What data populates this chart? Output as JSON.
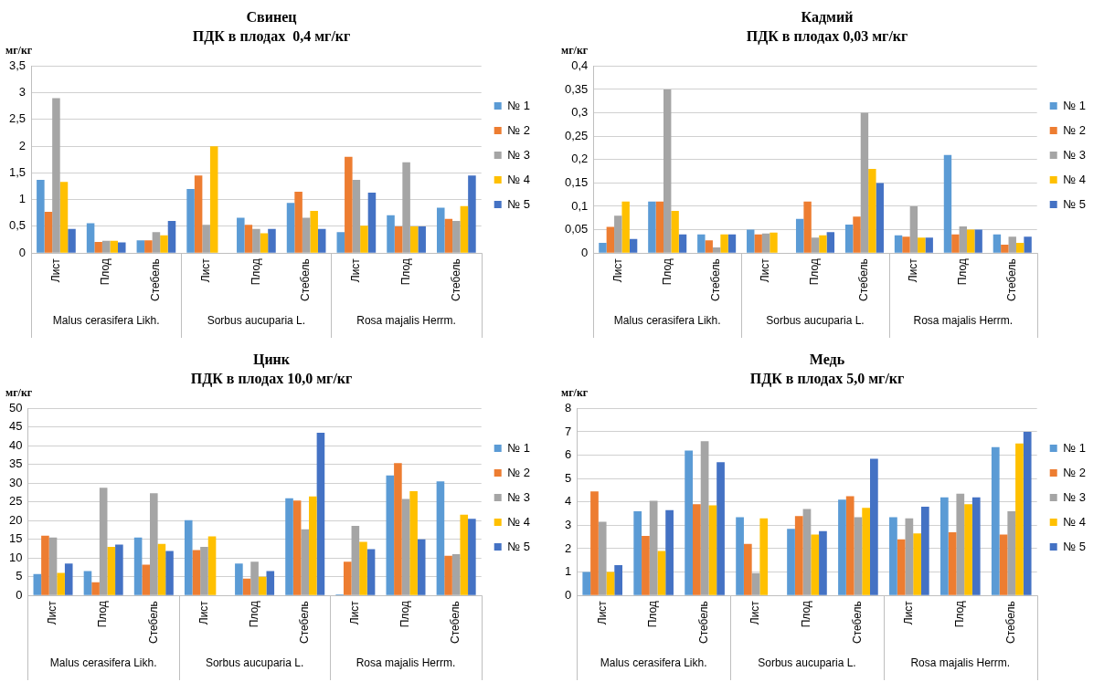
{
  "chart_data": [
    {
      "type": "bar",
      "title": "Свинец",
      "subtitle": "ПДК в плодах  0,4 мг/кг",
      "ylabel": "мг/кг",
      "categories": [
        "Лист",
        "Плод",
        "Стебель",
        "Лист",
        "Плод",
        "Стебель",
        "Лист",
        "Плод",
        "Стебель"
      ],
      "annotations": [
        "Malus cerasifera Likh.",
        "Sorbus aucuparia L.",
        "Rosa majalis Herrm."
      ],
      "ylim": [
        0,
        3.5
      ],
      "yticks": [
        0,
        {
          "value": 0.5,
          "label": "0,5"
        },
        1,
        {
          "value": 1.5,
          "label": "1,5"
        },
        2,
        {
          "value": 2.5,
          "label": "2,5"
        },
        3,
        {
          "value": 3.5,
          "label": "3,5"
        }
      ],
      "grid": "y",
      "legend": "right",
      "series": [
        {
          "name": "№ 1",
          "color": "#5b9bd5",
          "values": [
            1.37,
            0.56,
            0.24,
            1.2,
            0.66,
            0.94,
            0.39,
            0.71,
            0.85
          ]
        },
        {
          "name": "№ 2",
          "color": "#ed7d31",
          "values": [
            0.77,
            0.21,
            0.24,
            1.45,
            0.53,
            1.15,
            1.8,
            0.5,
            0.64
          ]
        },
        {
          "name": "№ 3",
          "color": "#a5a5a5",
          "values": [
            2.9,
            0.23,
            0.39,
            0.53,
            0.45,
            0.66,
            1.37,
            1.7,
            0.6
          ]
        },
        {
          "name": "№ 4",
          "color": "#ffc000",
          "values": [
            1.33,
            0.23,
            0.33,
            2.0,
            0.37,
            0.79,
            0.51,
            0.5,
            0.88
          ]
        },
        {
          "name": "№ 5",
          "color": "#4472c4",
          "values": [
            0.45,
            0.2,
            0.6,
            null,
            0.45,
            0.45,
            1.13,
            0.5,
            1.45
          ]
        }
      ]
    },
    {
      "type": "bar",
      "title": "Кадмий",
      "subtitle": "ПДК в плодах 0,03 мг/кг",
      "ylabel": "мг/кг",
      "categories": [
        "Лист",
        "Плод",
        "Стебель",
        "Лист",
        "Плод",
        "Стебель",
        "Лист",
        "Плод",
        "Стебель"
      ],
      "annotations": [
        "Malus cerasifera Likh.",
        "Sorbus aucuparia L.",
        "Rosa majalis Herrm."
      ],
      "ylim": [
        0,
        0.4
      ],
      "yticks": [
        0,
        {
          "value": 0.05,
          "label": "0,05"
        },
        {
          "value": 0.1,
          "label": "0,1"
        },
        {
          "value": 0.15,
          "label": "0,15"
        },
        {
          "value": 0.2,
          "label": "0,2"
        },
        {
          "value": 0.25,
          "label": "0,25"
        },
        {
          "value": 0.3,
          "label": "0,3"
        },
        {
          "value": 0.35,
          "label": "0,35"
        },
        {
          "value": 0.4,
          "label": "0,4"
        }
      ],
      "grid": "y",
      "legend": "right",
      "series": [
        {
          "name": "№ 1",
          "color": "#5b9bd5",
          "values": [
            0.022,
            0.11,
            0.04,
            0.05,
            0.073,
            0.061,
            0.038,
            0.21,
            0.04
          ]
        },
        {
          "name": "№ 2",
          "color": "#ed7d31",
          "values": [
            0.056,
            0.11,
            0.027,
            0.04,
            0.11,
            0.078,
            0.035,
            0.04,
            0.018
          ]
        },
        {
          "name": "№ 3",
          "color": "#a5a5a5",
          "values": [
            0.08,
            0.35,
            0.012,
            0.042,
            0.033,
            0.3,
            0.1,
            0.057,
            0.035
          ]
        },
        {
          "name": "№ 4",
          "color": "#ffc000",
          "values": [
            0.11,
            0.09,
            0.04,
            0.044,
            0.038,
            0.18,
            0.033,
            0.05,
            0.022
          ]
        },
        {
          "name": "№ 5",
          "color": "#4472c4",
          "values": [
            0.03,
            0.04,
            0.04,
            null,
            0.045,
            0.15,
            0.033,
            0.05,
            0.035
          ]
        }
      ]
    },
    {
      "type": "bar",
      "title": "Цинк",
      "subtitle": "ПДК в плодах 10,0 мг/кг",
      "ylabel": "мг/кг",
      "categories": [
        "Лист",
        "Плод",
        "Стебель",
        "Лист",
        "Плод",
        "Стебель",
        "Лист",
        "Плод",
        "Стебель"
      ],
      "annotations": [
        "Malus cerasifera Likh.",
        "Sorbus aucuparia L.",
        "Rosa majalis Herrm."
      ],
      "ylim": [
        0,
        50
      ],
      "yticks": [
        0,
        5,
        10,
        15,
        20,
        25,
        30,
        35,
        40,
        45,
        50
      ],
      "grid": "y",
      "legend": "right",
      "series": [
        {
          "name": "№ 1",
          "color": "#5b9bd5",
          "values": [
            5.7,
            6.5,
            15.5,
            20.1,
            8.5,
            26,
            0.3,
            32.1,
            30.5
          ]
        },
        {
          "name": "№ 2",
          "color": "#ed7d31",
          "values": [
            16,
            3.5,
            8.2,
            12.1,
            4.5,
            25.4,
            9,
            35.4,
            10.6
          ]
        },
        {
          "name": "№ 3",
          "color": "#a5a5a5",
          "values": [
            15.5,
            28.8,
            27.3,
            13,
            9,
            17.7,
            18.6,
            25.8,
            11
          ]
        },
        {
          "name": "№ 4",
          "color": "#ffc000",
          "values": [
            6,
            13,
            13.8,
            15.8,
            5,
            26.5,
            14.3,
            27.9,
            21.6
          ]
        },
        {
          "name": "№ 5",
          "color": "#4472c4",
          "values": [
            8.5,
            13.6,
            11.9,
            null,
            6.5,
            43.5,
            12.4,
            15,
            20.5
          ]
        }
      ]
    },
    {
      "type": "bar",
      "title": "Медь",
      "subtitle": "ПДК в плодах 5,0 мг/кг",
      "ylabel": "мг/кг",
      "categories": [
        "Лист",
        "Плод",
        "Стебель",
        "Лист",
        "Плод",
        "Стебель",
        "Лист",
        "Плод",
        "Стебель"
      ],
      "annotations": [
        "Malus cerasifera Likh.",
        "Sorbus aucuparia L.",
        "Rosa majalis Herrm."
      ],
      "ylim": [
        0,
        8
      ],
      "yticks": [
        0,
        1,
        2,
        3,
        4,
        5,
        6,
        7,
        8
      ],
      "grid": "y",
      "legend": "right",
      "series": [
        {
          "name": "№ 1",
          "color": "#5b9bd5",
          "values": [
            1.0,
            3.6,
            6.2,
            3.35,
            2.85,
            4.1,
            3.35,
            4.2,
            6.35
          ]
        },
        {
          "name": "№ 2",
          "color": "#ed7d31",
          "values": [
            4.45,
            2.55,
            3.9,
            2.2,
            3.4,
            4.25,
            2.4,
            2.7,
            2.6
          ]
        },
        {
          "name": "№ 3",
          "color": "#a5a5a5",
          "values": [
            3.15,
            4.05,
            6.6,
            0.95,
            3.7,
            3.35,
            3.3,
            4.35,
            3.6
          ]
        },
        {
          "name": "№ 4",
          "color": "#ffc000",
          "values": [
            1.0,
            1.9,
            3.85,
            3.3,
            2.6,
            3.75,
            2.65,
            3.9,
            6.5
          ]
        },
        {
          "name": "№ 5",
          "color": "#4472c4",
          "values": [
            1.3,
            3.65,
            5.7,
            null,
            2.75,
            5.85,
            3.8,
            4.2,
            7.0
          ]
        }
      ]
    }
  ]
}
